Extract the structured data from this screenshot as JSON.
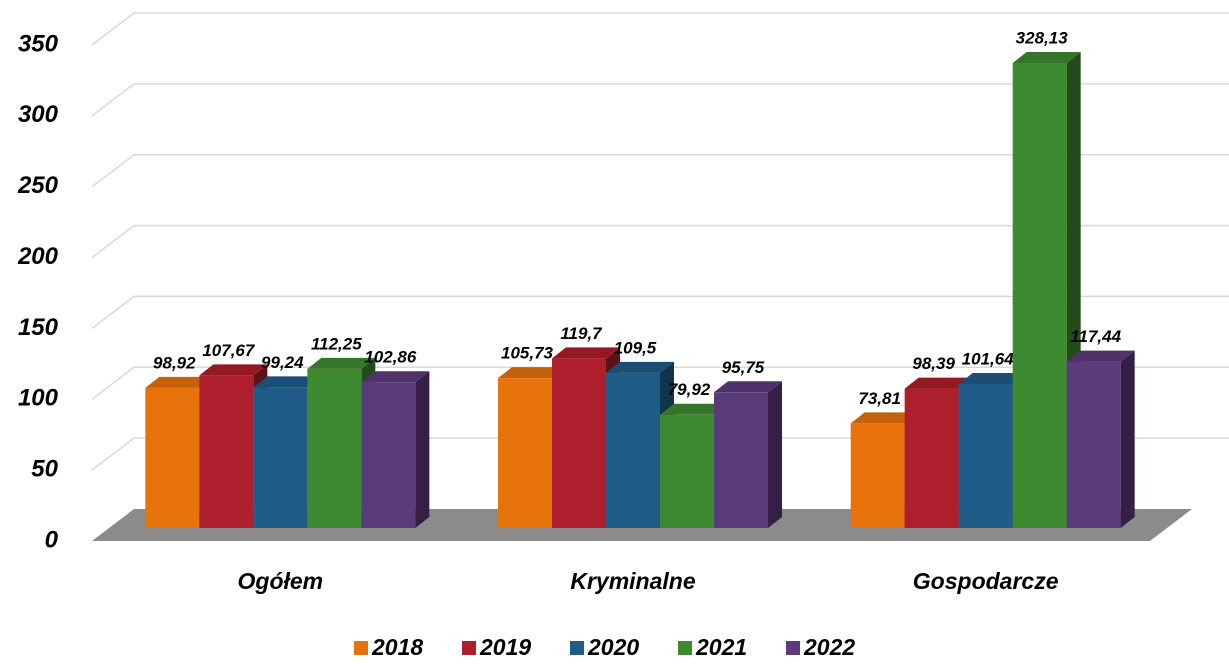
{
  "chart_data": {
    "type": "bar3d",
    "categories": [
      "Ogółem",
      "Kryminalne",
      "Gospodarcze"
    ],
    "series": [
      {
        "name": "2018",
        "color": "#e8720c",
        "values": [
          98.92,
          105.73,
          73.81
        ],
        "value_labels": [
          "98,92",
          "105,73",
          "73,81"
        ]
      },
      {
        "name": "2019",
        "color": "#ad1f2c",
        "values": [
          107.67,
          119.7,
          98.39
        ],
        "value_labels": [
          "107,67",
          "119,7",
          "98,39"
        ]
      },
      {
        "name": "2020",
        "color": "#1f5c88",
        "values": [
          99.24,
          109.5,
          101.64
        ],
        "value_labels": [
          "99,24",
          "109,5",
          "101,64"
        ]
      },
      {
        "name": "2021",
        "color": "#3e8a30",
        "values": [
          112.25,
          79.92,
          328.13
        ],
        "value_labels": [
          "112,25",
          "79,92",
          "328,13"
        ]
      },
      {
        "name": "2022",
        "color": "#5c3b7c",
        "values": [
          102.86,
          95.75,
          117.44
        ],
        "value_labels": [
          "102,86",
          "95,75",
          "117,44"
        ]
      }
    ],
    "ylim": [
      0,
      350
    ],
    "yticks": [
      0,
      50,
      100,
      150,
      200,
      250,
      300,
      350
    ],
    "grid": true,
    "legend": "bottom"
  }
}
